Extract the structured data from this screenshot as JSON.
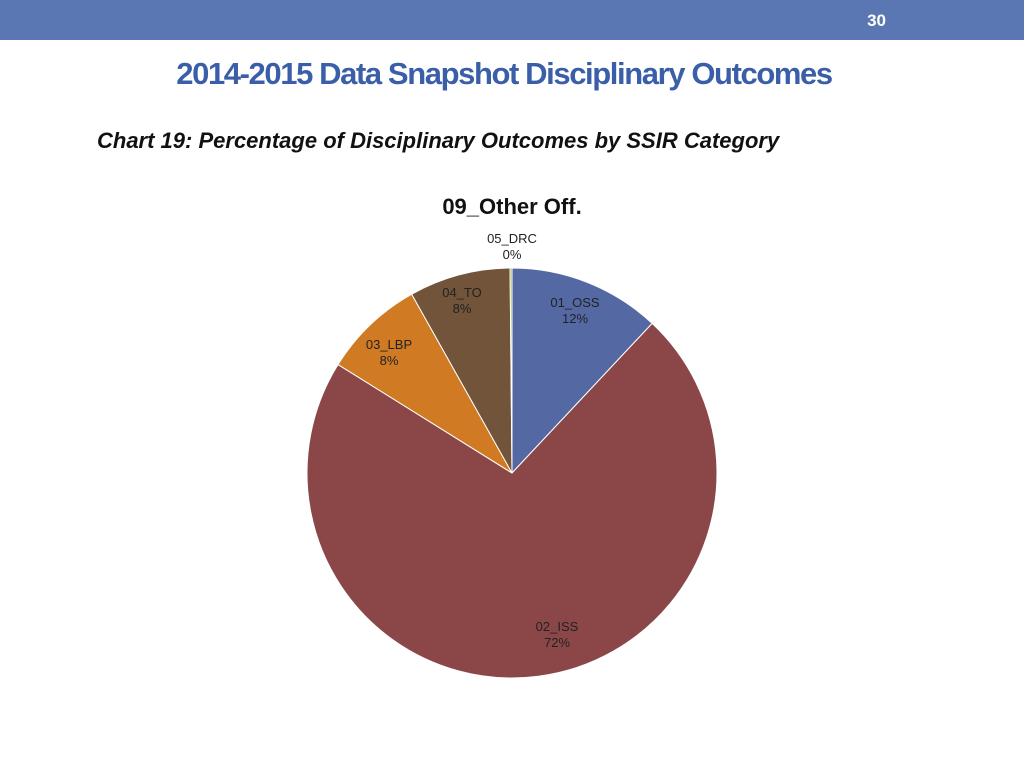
{
  "slide": {
    "number": "30",
    "title": "2014-2015 Data Snapshot Disciplinary Outcomes",
    "caption": "Chart 19: Percentage of Disciplinary Outcomes by SSIR Category"
  },
  "chart_data": {
    "type": "pie",
    "title": "09_Other Off.",
    "slices": [
      {
        "name": "01_OSS",
        "value": 12,
        "label": "12%",
        "color": "#5469a3"
      },
      {
        "name": "02_ISS",
        "value": 72,
        "label": "72%",
        "color": "#8b4748"
      },
      {
        "name": "03_LBP",
        "value": 8,
        "label": "8%",
        "color": "#d07a23"
      },
      {
        "name": "04_TO",
        "value": 8,
        "label": "8%",
        "color": "#72543a"
      },
      {
        "name": "05_DRC",
        "value": 0.15,
        "label": "0%",
        "color": "#8fa832"
      }
    ],
    "start_angle_deg": 0,
    "direction": "clockwise",
    "legend": "none",
    "data_labels": "name and percent"
  }
}
